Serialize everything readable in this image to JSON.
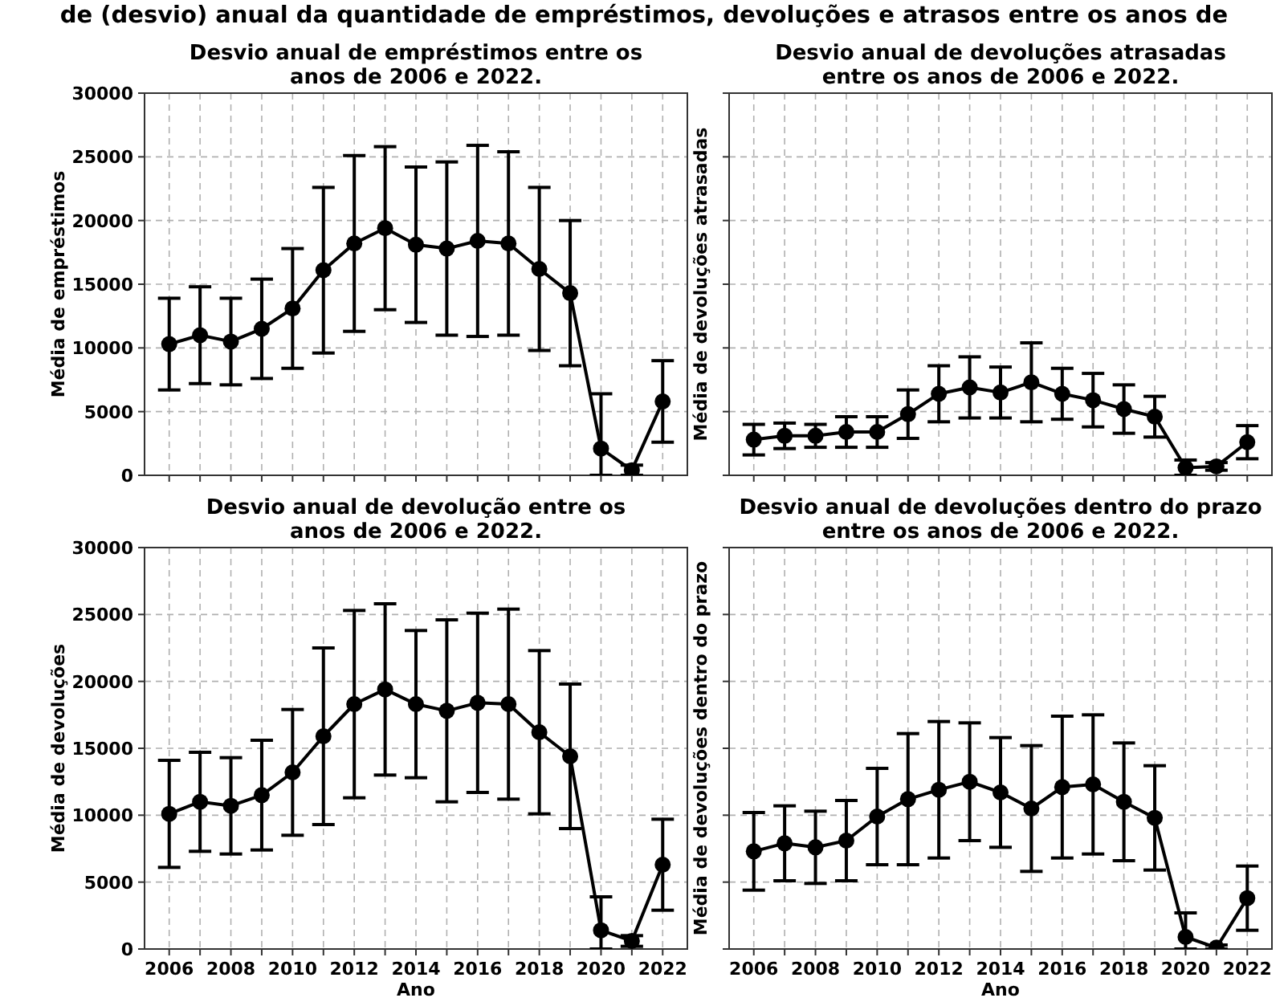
{
  "chart_data": [
    {
      "type": "other",
      "title": "de (desvio) anual da quantidade de empréstimos, devoluções e atrasos entre os anos de"
    },
    {
      "type": "line",
      "title": "Desvio anual de empréstimos entre os\nanos de 2006 e 2022.",
      "ylabel": "Média de empréstimos",
      "tick_labels": "y",
      "grid": true,
      "marker": "circle",
      "line_style": "solid",
      "color": "#000000",
      "x": [
        2006,
        2007,
        2008,
        2009,
        2010,
        2011,
        2012,
        2013,
        2014,
        2015,
        2016,
        2017,
        2018,
        2019,
        2020,
        2021,
        2022
      ],
      "values": [
        10300,
        11000,
        10500,
        11500,
        13100,
        16100,
        18200,
        19400,
        18100,
        17800,
        18400,
        18200,
        16200,
        14300,
        2100,
        400,
        5800
      ],
      "errors": [
        3600,
        3800,
        3400,
        3900,
        4700,
        6500,
        6900,
        6400,
        6100,
        6800,
        7500,
        7200,
        6400,
        5700,
        [
          0,
          6400
        ],
        400,
        3200
      ],
      "xlim": [
        2005.2,
        2022.8
      ],
      "xticks": [
        2006,
        {
          "value": 2007,
          "label": null
        },
        2008,
        {
          "value": 2009,
          "label": null
        },
        2010,
        {
          "value": 2011,
          "label": null
        },
        2012,
        {
          "value": 2013,
          "label": null
        },
        2014,
        {
          "value": 2015,
          "label": null
        },
        2016,
        {
          "value": 2017,
          "label": null
        },
        2018,
        {
          "value": 2019,
          "label": null
        },
        2020,
        {
          "value": 2021,
          "label": null
        },
        2022
      ],
      "ylim": [
        0,
        30000
      ],
      "yticks": [
        0,
        5000,
        10000,
        15000,
        20000,
        25000,
        30000
      ]
    },
    {
      "type": "line",
      "title": "Desvio anual de devoluções atrasadas\nentre os anos de 2006 e 2022.",
      "ylabel": "Média de devoluções atrasadas",
      "tick_labels": false,
      "grid": true,
      "marker": "circle",
      "line_style": "solid",
      "color": "#000000",
      "x": [
        2006,
        2007,
        2008,
        2009,
        2010,
        2011,
        2012,
        2013,
        2014,
        2015,
        2016,
        2017,
        2018,
        2019,
        2020,
        2021,
        2022
      ],
      "values": [
        2800,
        3100,
        3100,
        3400,
        3400,
        4800,
        6400,
        6900,
        6500,
        7300,
        6400,
        5900,
        5200,
        4600,
        600,
        700,
        2600
      ],
      "errors": [
        1200,
        1000,
        900,
        1200,
        1200,
        1900,
        2200,
        2400,
        2000,
        3100,
        2000,
        2100,
        1900,
        1600,
        600,
        300,
        1300
      ],
      "xlim": [
        2005.2,
        2022.8
      ],
      "xticks": [
        2006,
        {
          "value": 2007,
          "label": null
        },
        2008,
        {
          "value": 2009,
          "label": null
        },
        2010,
        {
          "value": 2011,
          "label": null
        },
        2012,
        {
          "value": 2013,
          "label": null
        },
        2014,
        {
          "value": 2015,
          "label": null
        },
        2016,
        {
          "value": 2017,
          "label": null
        },
        2018,
        {
          "value": 2019,
          "label": null
        },
        2020,
        {
          "value": 2021,
          "label": null
        },
        2022
      ],
      "ylim": [
        0,
        30000
      ],
      "yticks": [
        0,
        5000,
        10000,
        15000,
        20000,
        25000,
        30000
      ]
    },
    {
      "type": "line",
      "title": "Desvio anual de devolução entre os\nanos de 2006 e 2022.",
      "xlabel": "Ano",
      "ylabel": "Média de devoluções",
      "grid": true,
      "marker": "circle",
      "line_style": "solid",
      "color": "#000000",
      "x": [
        2006,
        2007,
        2008,
        2009,
        2010,
        2011,
        2012,
        2013,
        2014,
        2015,
        2016,
        2017,
        2018,
        2019,
        2020,
        2021,
        2022
      ],
      "values": [
        10100,
        11000,
        10700,
        11500,
        13200,
        15900,
        18300,
        19400,
        18300,
        17800,
        18400,
        18300,
        16200,
        14400,
        1400,
        600,
        6300
      ],
      "errors": [
        4000,
        3700,
        3600,
        4100,
        4700,
        6600,
        7000,
        6400,
        5500,
        6800,
        6700,
        7100,
        6100,
        5400,
        [
          0,
          3900
        ],
        400,
        3400
      ],
      "xlim": [
        2005.2,
        2022.8
      ],
      "xticks": [
        2006,
        {
          "value": 2007,
          "label": null
        },
        2008,
        {
          "value": 2009,
          "label": null
        },
        2010,
        {
          "value": 2011,
          "label": null
        },
        2012,
        {
          "value": 2013,
          "label": null
        },
        2014,
        {
          "value": 2015,
          "label": null
        },
        2016,
        {
          "value": 2017,
          "label": null
        },
        2018,
        {
          "value": 2019,
          "label": null
        },
        2020,
        {
          "value": 2021,
          "label": null
        },
        2022
      ],
      "ylim": [
        0,
        30000
      ],
      "yticks": [
        0,
        5000,
        10000,
        15000,
        20000,
        25000,
        30000
      ]
    },
    {
      "type": "line",
      "title": "Desvio anual de devoluções dentro do prazo\nentre os anos de 2006 e 2022.",
      "xlabel": "Ano",
      "ylabel": "Média de devoluções dentro do prazo",
      "tick_labels": "x",
      "grid": true,
      "marker": "circle",
      "line_style": "solid",
      "color": "#000000",
      "x": [
        2006,
        2007,
        2008,
        2009,
        2010,
        2011,
        2012,
        2013,
        2014,
        2015,
        2016,
        2017,
        2018,
        2019,
        2020,
        2021,
        2022
      ],
      "values": [
        7300,
        7900,
        7600,
        8100,
        9900,
        11200,
        11900,
        12500,
        11700,
        10500,
        12100,
        12300,
        11000,
        9800,
        900,
        100,
        3800
      ],
      "errors": [
        2900,
        2800,
        2700,
        3000,
        3600,
        4900,
        5100,
        4400,
        4100,
        4700,
        5300,
        5200,
        4400,
        3900,
        [
          0,
          2700
        ],
        [
          0,
          300
        ],
        2400
      ],
      "xlim": [
        2005.2,
        2022.8
      ],
      "xticks": [
        2006,
        {
          "value": 2007,
          "label": null
        },
        2008,
        {
          "value": 2009,
          "label": null
        },
        2010,
        {
          "value": 2011,
          "label": null
        },
        2012,
        {
          "value": 2013,
          "label": null
        },
        2014,
        {
          "value": 2015,
          "label": null
        },
        2016,
        {
          "value": 2017,
          "label": null
        },
        2018,
        {
          "value": 2019,
          "label": null
        },
        2020,
        {
          "value": 2021,
          "label": null
        },
        2022
      ],
      "ylim": [
        0,
        30000
      ],
      "yticks": [
        0,
        5000,
        10000,
        15000,
        20000,
        25000,
        30000
      ]
    }
  ]
}
